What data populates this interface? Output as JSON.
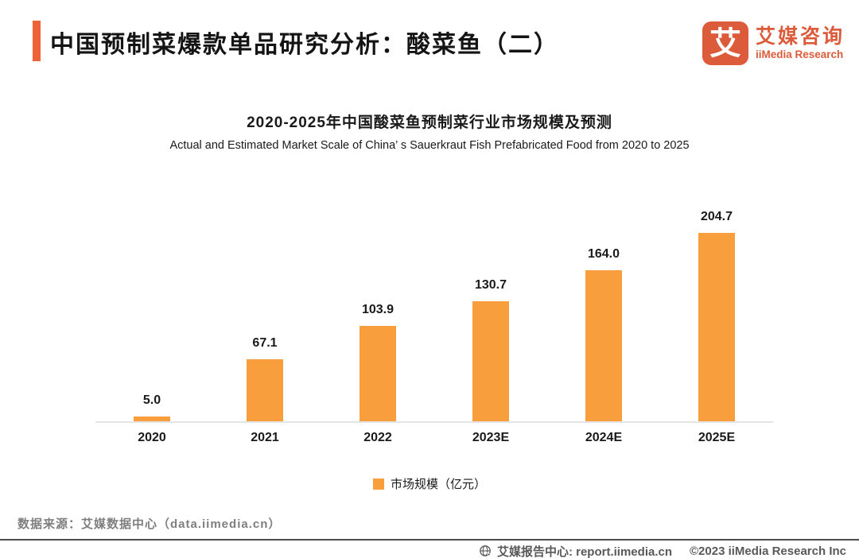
{
  "colors": {
    "accent_bar": "#EE6238",
    "logo": "#DC5B3A",
    "bar_fill": "#F99E3C",
    "baseline": "#E4E4E4",
    "source_text": "#7F7F7F",
    "footer_text": "#595959"
  },
  "header": {
    "title": "中国预制菜爆款单品研究分析：酸菜鱼（二）",
    "logo": {
      "glyph": "艾",
      "name_cn": "艾媒咨询",
      "name_en": "iiMedia Research"
    }
  },
  "chart_data": {
    "type": "bar",
    "title": "2020-2025年中国酸菜鱼预制菜行业市场规模及预测",
    "subtitle": "Actual and Estimated Market Scale of China’ s Sauerkraut Fish Prefabricated Food from 2020 to 2025",
    "categories": [
      "2020",
      "2021",
      "2022",
      "2023E",
      "2024E",
      "2025E"
    ],
    "values": [
      5.0,
      67.1,
      103.9,
      130.7,
      164.0,
      204.7
    ],
    "series_name": "市场规模（亿元）",
    "bar_color": "#F99E3C",
    "xlabel": "",
    "ylabel": "市场规模（亿元）",
    "ylim": [
      0,
      220
    ],
    "grid": false,
    "legend_position": "bottom"
  },
  "legend": {
    "label": "市场规模（亿元）"
  },
  "source": "数据来源：艾媒数据中心（data.iimedia.cn）",
  "footer": {
    "report_center": "艾媒报告中心: report.iimedia.cn",
    "copyright": "©2023  iiMedia Research  Inc"
  }
}
